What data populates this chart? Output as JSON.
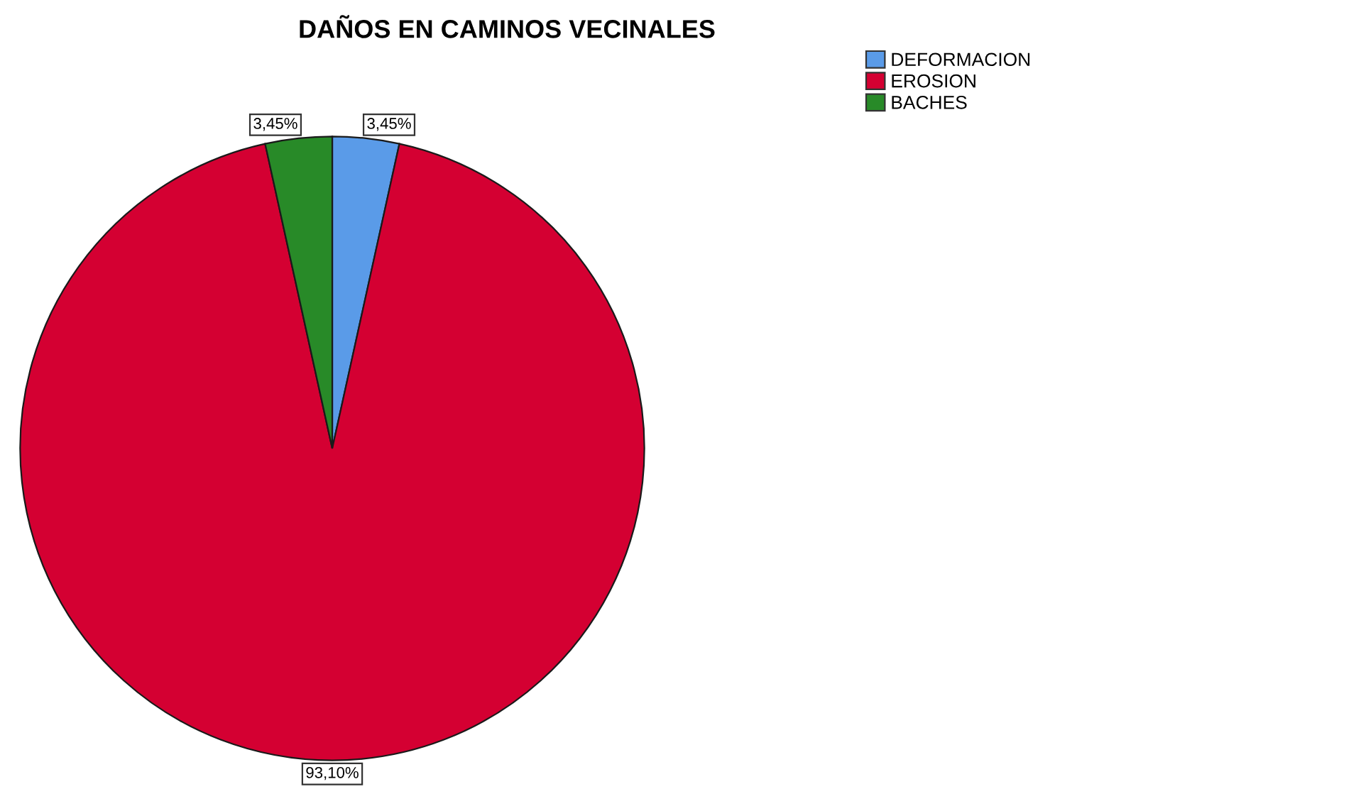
{
  "chart_data": {
    "type": "pie",
    "title": "DAÑOS EN CAMINOS VECINALES",
    "categories": [
      "DEFORMACION",
      "EROSION",
      "BACHES"
    ],
    "values": [
      3.45,
      93.1,
      3.45
    ],
    "value_labels": [
      "3,45%",
      "93,10%",
      "3,45%"
    ],
    "colors": [
      "#5a9be8",
      "#d40032",
      "#288a28"
    ],
    "legend": "top right"
  }
}
